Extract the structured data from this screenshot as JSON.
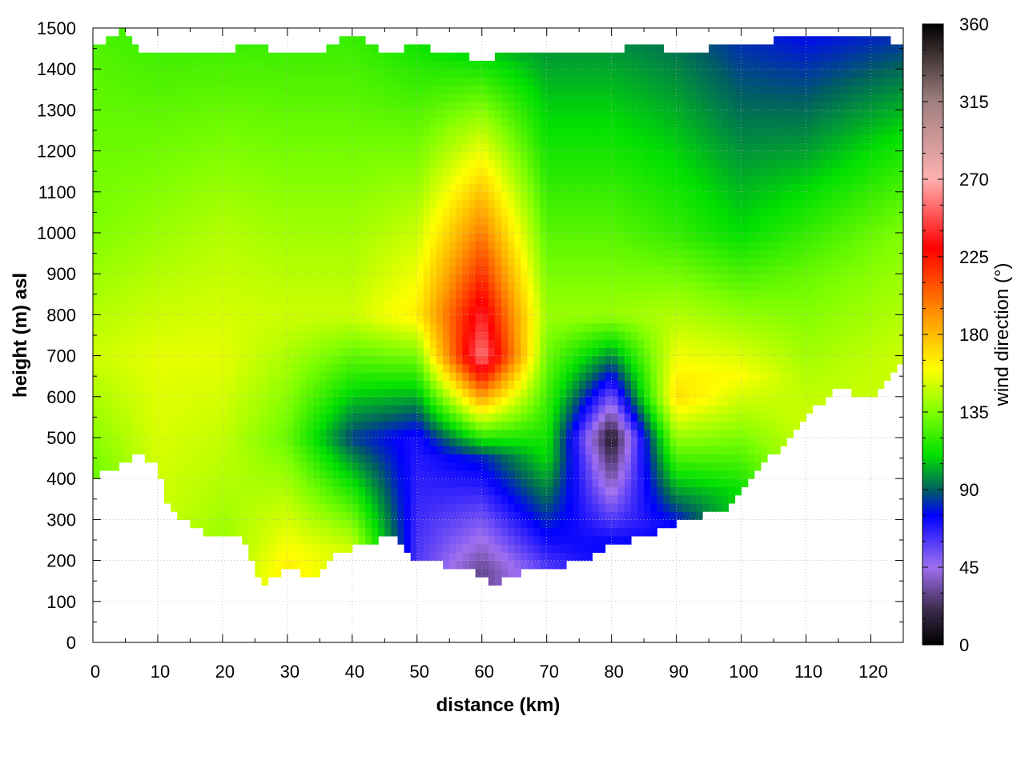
{
  "chart_data": {
    "type": "heatmap",
    "title": "",
    "xlabel": "distance (km)",
    "ylabel": "height (m) asl",
    "colorbar_label": "wind direction (°)",
    "xlim": [
      0,
      125
    ],
    "ylim": [
      0,
      1500
    ],
    "clim": [
      0,
      360
    ],
    "x_ticks": [
      0,
      10,
      20,
      30,
      40,
      50,
      60,
      70,
      80,
      90,
      100,
      110,
      120
    ],
    "y_ticks": [
      0,
      100,
      200,
      300,
      400,
      500,
      600,
      700,
      800,
      900,
      1000,
      1100,
      1200,
      1300,
      1400,
      1500
    ],
    "colorbar_ticks": [
      0,
      45,
      90,
      135,
      180,
      225,
      270,
      315,
      360
    ],
    "grid": true,
    "colormap": [
      {
        "v": 0,
        "c": "#000000"
      },
      {
        "v": 20,
        "c": "#3a2a4a"
      },
      {
        "v": 45,
        "c": "#a070f0"
      },
      {
        "v": 75,
        "c": "#0000ff"
      },
      {
        "v": 90,
        "c": "#006060"
      },
      {
        "v": 110,
        "c": "#00e000"
      },
      {
        "v": 135,
        "c": "#80ff00"
      },
      {
        "v": 160,
        "c": "#ffff00"
      },
      {
        "v": 190,
        "c": "#ff9900"
      },
      {
        "v": 230,
        "c": "#ff0000"
      },
      {
        "v": 270,
        "c": "#ffb0b0"
      },
      {
        "v": 315,
        "c": "#a08080"
      },
      {
        "v": 360,
        "c": "#000000"
      }
    ],
    "terrain_height": [
      {
        "x": 0,
        "h": 400
      },
      {
        "x": 5,
        "h": 440
      },
      {
        "x": 7,
        "h": 462
      },
      {
        "x": 10,
        "h": 430
      },
      {
        "x": 12,
        "h": 320
      },
      {
        "x": 15,
        "h": 285
      },
      {
        "x": 20,
        "h": 255
      },
      {
        "x": 23,
        "h": 260
      },
      {
        "x": 26,
        "h": 140
      },
      {
        "x": 30,
        "h": 185
      },
      {
        "x": 34,
        "h": 150
      },
      {
        "x": 37,
        "h": 210
      },
      {
        "x": 40,
        "h": 230
      },
      {
        "x": 43,
        "h": 240
      },
      {
        "x": 46,
        "h": 265
      },
      {
        "x": 49,
        "h": 205
      },
      {
        "x": 53,
        "h": 195
      },
      {
        "x": 58,
        "h": 175
      },
      {
        "x": 62,
        "h": 145
      },
      {
        "x": 66,
        "h": 170
      },
      {
        "x": 70,
        "h": 185
      },
      {
        "x": 75,
        "h": 195
      },
      {
        "x": 80,
        "h": 240
      },
      {
        "x": 85,
        "h": 260
      },
      {
        "x": 90,
        "h": 290
      },
      {
        "x": 94,
        "h": 310
      },
      {
        "x": 98,
        "h": 330
      },
      {
        "x": 100,
        "h": 365
      },
      {
        "x": 105,
        "h": 460
      },
      {
        "x": 110,
        "h": 560
      },
      {
        "x": 115,
        "h": 620
      },
      {
        "x": 120,
        "h": 595
      },
      {
        "x": 122,
        "h": 640
      },
      {
        "x": 125,
        "h": 690
      }
    ],
    "top_height": [
      {
        "x": 0,
        "h": 1450
      },
      {
        "x": 5,
        "h": 1495
      },
      {
        "x": 8,
        "h": 1440
      },
      {
        "x": 15,
        "h": 1450
      },
      {
        "x": 20,
        "h": 1440
      },
      {
        "x": 25,
        "h": 1460
      },
      {
        "x": 30,
        "h": 1430
      },
      {
        "x": 35,
        "h": 1440
      },
      {
        "x": 40,
        "h": 1490
      },
      {
        "x": 45,
        "h": 1440
      },
      {
        "x": 50,
        "h": 1455
      },
      {
        "x": 55,
        "h": 1440
      },
      {
        "x": 60,
        "h": 1420
      },
      {
        "x": 65,
        "h": 1440
      },
      {
        "x": 70,
        "h": 1435
      },
      {
        "x": 75,
        "h": 1430
      },
      {
        "x": 80,
        "h": 1440
      },
      {
        "x": 85,
        "h": 1460
      },
      {
        "x": 90,
        "h": 1440
      },
      {
        "x": 95,
        "h": 1450
      },
      {
        "x": 100,
        "h": 1460
      },
      {
        "x": 105,
        "h": 1470
      },
      {
        "x": 110,
        "h": 1490
      },
      {
        "x": 115,
        "h": 1475
      },
      {
        "x": 120,
        "h": 1490
      },
      {
        "x": 125,
        "h": 1450
      }
    ],
    "wind_direction_profiles": [
      {
        "x": 0,
        "levels": [
          {
            "h": 400,
            "dir": 130
          },
          {
            "h": 700,
            "dir": 150
          },
          {
            "h": 1000,
            "dir": 135
          },
          {
            "h": 1500,
            "dir": 125
          }
        ]
      },
      {
        "x": 10,
        "levels": [
          {
            "h": 300,
            "dir": 150
          },
          {
            "h": 700,
            "dir": 155
          },
          {
            "h": 1000,
            "dir": 140
          },
          {
            "h": 1500,
            "dir": 120
          }
        ]
      },
      {
        "x": 20,
        "levels": [
          {
            "h": 250,
            "dir": 140
          },
          {
            "h": 700,
            "dir": 155
          },
          {
            "h": 1000,
            "dir": 145
          },
          {
            "h": 1500,
            "dir": 120
          }
        ]
      },
      {
        "x": 30,
        "levels": [
          {
            "h": 180,
            "dir": 165
          },
          {
            "h": 500,
            "dir": 130
          },
          {
            "h": 800,
            "dir": 150
          },
          {
            "h": 1500,
            "dir": 120
          }
        ]
      },
      {
        "x": 40,
        "levels": [
          {
            "h": 230,
            "dir": 150
          },
          {
            "h": 500,
            "dir": 85
          },
          {
            "h": 800,
            "dir": 150
          },
          {
            "h": 1500,
            "dir": 120
          }
        ]
      },
      {
        "x": 50,
        "levels": [
          {
            "h": 200,
            "dir": 60
          },
          {
            "h": 500,
            "dir": 70
          },
          {
            "h": 800,
            "dir": 165
          },
          {
            "h": 1500,
            "dir": 110
          }
        ]
      },
      {
        "x": 60,
        "levels": [
          {
            "h": 175,
            "dir": 30
          },
          {
            "h": 450,
            "dir": 80
          },
          {
            "h": 700,
            "dir": 260
          },
          {
            "h": 1500,
            "dir": 95
          }
        ]
      },
      {
        "x": 70,
        "levels": [
          {
            "h": 185,
            "dir": 60
          },
          {
            "h": 450,
            "dir": 110
          },
          {
            "h": 800,
            "dir": 140
          },
          {
            "h": 1500,
            "dir": 95
          }
        ]
      },
      {
        "x": 80,
        "levels": [
          {
            "h": 240,
            "dir": 75
          },
          {
            "h": 500,
            "dir": 10
          },
          {
            "h": 800,
            "dir": 140
          },
          {
            "h": 1500,
            "dir": 95
          }
        ]
      },
      {
        "x": 90,
        "levels": [
          {
            "h": 290,
            "dir": 75
          },
          {
            "h": 600,
            "dir": 170
          },
          {
            "h": 1000,
            "dir": 120
          },
          {
            "h": 1500,
            "dir": 90
          }
        ]
      },
      {
        "x": 100,
        "levels": [
          {
            "h": 365,
            "dir": 110
          },
          {
            "h": 650,
            "dir": 160
          },
          {
            "h": 1000,
            "dir": 110
          },
          {
            "h": 1500,
            "dir": 80
          }
        ]
      },
      {
        "x": 110,
        "levels": [
          {
            "h": 560,
            "dir": 150
          },
          {
            "h": 900,
            "dir": 130
          },
          {
            "h": 1200,
            "dir": 100
          },
          {
            "h": 1500,
            "dir": 75
          }
        ]
      },
      {
        "x": 125,
        "levels": [
          {
            "h": 690,
            "dir": 150
          },
          {
            "h": 1000,
            "dir": 135
          },
          {
            "h": 1200,
            "dir": 115
          },
          {
            "h": 1500,
            "dir": 80
          }
        ]
      }
    ]
  }
}
